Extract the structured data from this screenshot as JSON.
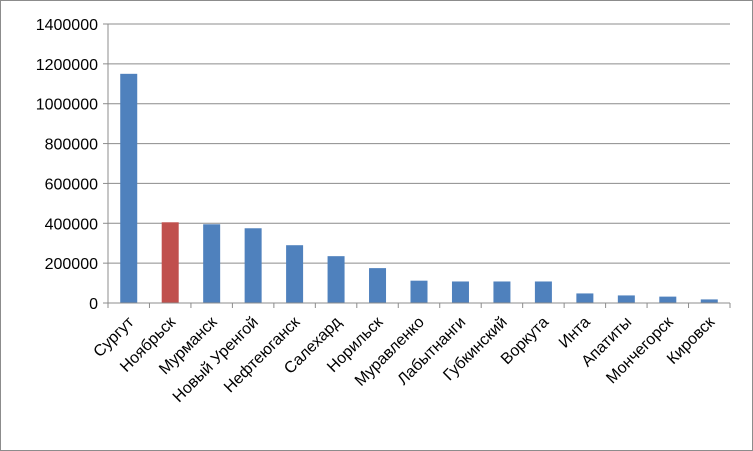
{
  "chart_data": {
    "type": "bar",
    "title": "",
    "xlabel": "",
    "ylabel": "",
    "categories": [
      "Сургут",
      "Ноябрьск",
      "Мурманск",
      "Новый Уренгой",
      "Нефтеюганск",
      "Салехард",
      "Норильск",
      "Муравленко",
      "Лабытнанги",
      "Губкинский",
      "Воркута",
      "Инта",
      "Апатиты",
      "Мончегорск",
      "Кировск"
    ],
    "values": [
      1150000,
      405000,
      395000,
      375000,
      290000,
      235000,
      175000,
      112000,
      108000,
      108000,
      108000,
      48000,
      38000,
      32000,
      18000
    ],
    "ylim": [
      0,
      1400000
    ],
    "yticks": [
      "0",
      "200000",
      "400000",
      "600000",
      "800000",
      "1000000",
      "1200000",
      "1400000"
    ],
    "grid": true,
    "legend": "none",
    "colors": {
      "bar": "#4f81bd",
      "highlight": "#c0504d",
      "grid": "#8c8c8c",
      "axis": "#8c8c8c"
    },
    "highlight_index": 1
  }
}
